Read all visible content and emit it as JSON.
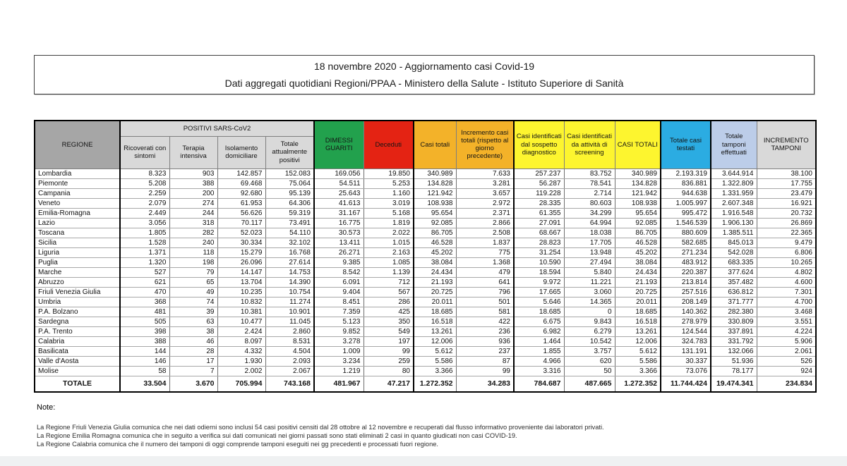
{
  "page": {
    "title_line1": "18 novembre 2020 - Aggiornamento casi Covid-19",
    "title_line2": "Dati aggregati quotidiani Regioni/PPAA - Ministero della Salute - Istituto Superiore di Sanità"
  },
  "colors": {
    "green": "#22a14d",
    "red": "#e42313",
    "orange": "#f3b229",
    "yellow": "#fdf52f",
    "cyan": "#2bace2",
    "periwinkle": "#bccde9",
    "gray_dark": "#a6a6a6",
    "gray_mid": "#bfbfbf",
    "gray_light": "#d9d9d9"
  },
  "table": {
    "header": {
      "regione": "REGIONE",
      "positivi_group": "POSITIVI SARS-CoV2",
      "ricoverati": "Ricoverati con sintomi",
      "terapia": "Terapia intensiva",
      "isolamento": "Isolamento domiciliare",
      "totale_positivi": "Totale attualmente positivi",
      "dimessi": "DIMESSI GUARITI",
      "deceduti": "Deceduti",
      "casi_totali": "Casi totali",
      "incremento_casi": "Incremento casi totali (rispetto al giorno precedente)",
      "sospetto": "Casi identificati dal sospetto diagnostico",
      "screening": "Casi identificati da attività di screening",
      "casi_totali_upper": "CASI TOTALI",
      "testati": "Totale casi testati",
      "tamponi": "Totale tamponi effettuati",
      "incremento_tamponi": "INCREMENTO TAMPONI"
    },
    "regions": [
      {
        "name": "Lombardia",
        "values": [
          "8.323",
          "903",
          "142.857",
          "152.083",
          "169.056",
          "19.850",
          "340.989",
          "7.633",
          "257.237",
          "83.752",
          "340.989",
          "2.193.319",
          "3.644.914",
          "38.100"
        ]
      },
      {
        "name": "Piemonte",
        "values": [
          "5.208",
          "388",
          "69.468",
          "75.064",
          "54.511",
          "5.253",
          "134.828",
          "3.281",
          "56.287",
          "78.541",
          "134.828",
          "836.881",
          "1.322.809",
          "17.755"
        ]
      },
      {
        "name": "Campania",
        "values": [
          "2.259",
          "200",
          "92.680",
          "95.139",
          "25.643",
          "1.160",
          "121.942",
          "3.657",
          "119.228",
          "2.714",
          "121.942",
          "944.638",
          "1.331.959",
          "23.479"
        ]
      },
      {
        "name": "Veneto",
        "values": [
          "2.079",
          "274",
          "61.953",
          "64.306",
          "41.613",
          "3.019",
          "108.938",
          "2.972",
          "28.335",
          "80.603",
          "108.938",
          "1.005.997",
          "2.607.348",
          "16.921"
        ]
      },
      {
        "name": "Emilia-Romagna",
        "values": [
          "2.449",
          "244",
          "56.626",
          "59.319",
          "31.167",
          "5.168",
          "95.654",
          "2.371",
          "61.355",
          "34.299",
          "95.654",
          "995.472",
          "1.916.548",
          "20.732"
        ]
      },
      {
        "name": "Lazio",
        "values": [
          "3.056",
          "318",
          "70.117",
          "73.491",
          "16.775",
          "1.819",
          "92.085",
          "2.866",
          "27.091",
          "64.994",
          "92.085",
          "1.546.539",
          "1.906.130",
          "26.869"
        ]
      },
      {
        "name": "Toscana",
        "values": [
          "1.805",
          "282",
          "52.023",
          "54.110",
          "30.573",
          "2.022",
          "86.705",
          "2.508",
          "68.667",
          "18.038",
          "86.705",
          "880.609",
          "1.385.511",
          "22.365"
        ]
      },
      {
        "name": "Sicilia",
        "values": [
          "1.528",
          "240",
          "30.334",
          "32.102",
          "13.411",
          "1.015",
          "46.528",
          "1.837",
          "28.823",
          "17.705",
          "46.528",
          "582.685",
          "845.013",
          "9.479"
        ]
      },
      {
        "name": "Liguria",
        "values": [
          "1.371",
          "118",
          "15.279",
          "16.768",
          "26.271",
          "2.163",
          "45.202",
          "775",
          "31.254",
          "13.948",
          "45.202",
          "271.234",
          "542.028",
          "6.806"
        ]
      },
      {
        "name": "Puglia",
        "values": [
          "1.320",
          "198",
          "26.096",
          "27.614",
          "9.385",
          "1.085",
          "38.084",
          "1.368",
          "10.590",
          "27.494",
          "38.084",
          "483.912",
          "683.335",
          "10.265"
        ]
      },
      {
        "name": "Marche",
        "values": [
          "527",
          "79",
          "14.147",
          "14.753",
          "8.542",
          "1.139",
          "24.434",
          "479",
          "18.594",
          "5.840",
          "24.434",
          "220.387",
          "377.624",
          "4.802"
        ]
      },
      {
        "name": "Abruzzo",
        "values": [
          "621",
          "65",
          "13.704",
          "14.390",
          "6.091",
          "712",
          "21.193",
          "641",
          "9.972",
          "11.221",
          "21.193",
          "213.814",
          "357.482",
          "4.600"
        ]
      },
      {
        "name": "Friuli Venezia Giulia",
        "values": [
          "470",
          "49",
          "10.235",
          "10.754",
          "9.404",
          "567",
          "20.725",
          "796",
          "17.665",
          "3.060",
          "20.725",
          "257.516",
          "636.812",
          "7.301"
        ]
      },
      {
        "name": "Umbria",
        "values": [
          "368",
          "74",
          "10.832",
          "11.274",
          "8.451",
          "286",
          "20.011",
          "501",
          "5.646",
          "14.365",
          "20.011",
          "208.149",
          "371.777",
          "4.700"
        ]
      },
      {
        "name": "P.A. Bolzano",
        "values": [
          "481",
          "39",
          "10.381",
          "10.901",
          "7.359",
          "425",
          "18.685",
          "581",
          "18.685",
          "0",
          "18.685",
          "140.362",
          "282.380",
          "3.468"
        ]
      },
      {
        "name": "Sardegna",
        "values": [
          "505",
          "63",
          "10.477",
          "11.045",
          "5.123",
          "350",
          "16.518",
          "422",
          "6.675",
          "9.843",
          "16.518",
          "278.979",
          "330.809",
          "3.551"
        ]
      },
      {
        "name": "P.A. Trento",
        "values": [
          "398",
          "38",
          "2.424",
          "2.860",
          "9.852",
          "549",
          "13.261",
          "236",
          "6.982",
          "6.279",
          "13.261",
          "124.544",
          "337.891",
          "4.224"
        ]
      },
      {
        "name": "Calabria",
        "values": [
          "388",
          "46",
          "8.097",
          "8.531",
          "3.278",
          "197",
          "12.006",
          "936",
          "1.464",
          "10.542",
          "12.006",
          "324.783",
          "331.792",
          "5.906"
        ]
      },
      {
        "name": "Basilicata",
        "values": [
          "144",
          "28",
          "4.332",
          "4.504",
          "1.009",
          "99",
          "5.612",
          "237",
          "1.855",
          "3.757",
          "5.612",
          "131.191",
          "132.066",
          "2.061"
        ]
      },
      {
        "name": "Valle d'Aosta",
        "values": [
          "146",
          "17",
          "1.930",
          "2.093",
          "3.234",
          "259",
          "5.586",
          "87",
          "4.966",
          "620",
          "5.586",
          "30.337",
          "51.936",
          "526"
        ]
      },
      {
        "name": "Molise",
        "values": [
          "58",
          "7",
          "2.002",
          "2.067",
          "1.219",
          "80",
          "3.366",
          "99",
          "3.316",
          "50",
          "3.366",
          "73.076",
          "78.177",
          "924"
        ]
      }
    ],
    "totale": {
      "label": "TOTALE",
      "values": [
        "33.504",
        "3.670",
        "705.994",
        "743.168",
        "481.967",
        "47.217",
        "1.272.352",
        "34.283",
        "784.687",
        "487.665",
        "1.272.352",
        "11.744.424",
        "19.474.341",
        "234.834"
      ]
    }
  },
  "notes": {
    "title": "Note:",
    "lines": [
      "La Regione Friuli Venezia Giulia comunica che nei dati odierni sono inclusi 54 casi positivi censiti dal 28 ottobre al 12 novembre e recuperati dal flusso informativo proveniente dai laboratori privati.",
      "La Regione Emilia Romagna comunica che in seguito a verifica sui dati comunicati nei giorni passati sono stati eliminati 2 casi in quanto giudicati non casi COVID-19.",
      "La Regione Calabria comunica che il numero dei tamponi di oggi comprende tamponi eseguiti nei gg precedenti e processati fuori regione."
    ]
  }
}
